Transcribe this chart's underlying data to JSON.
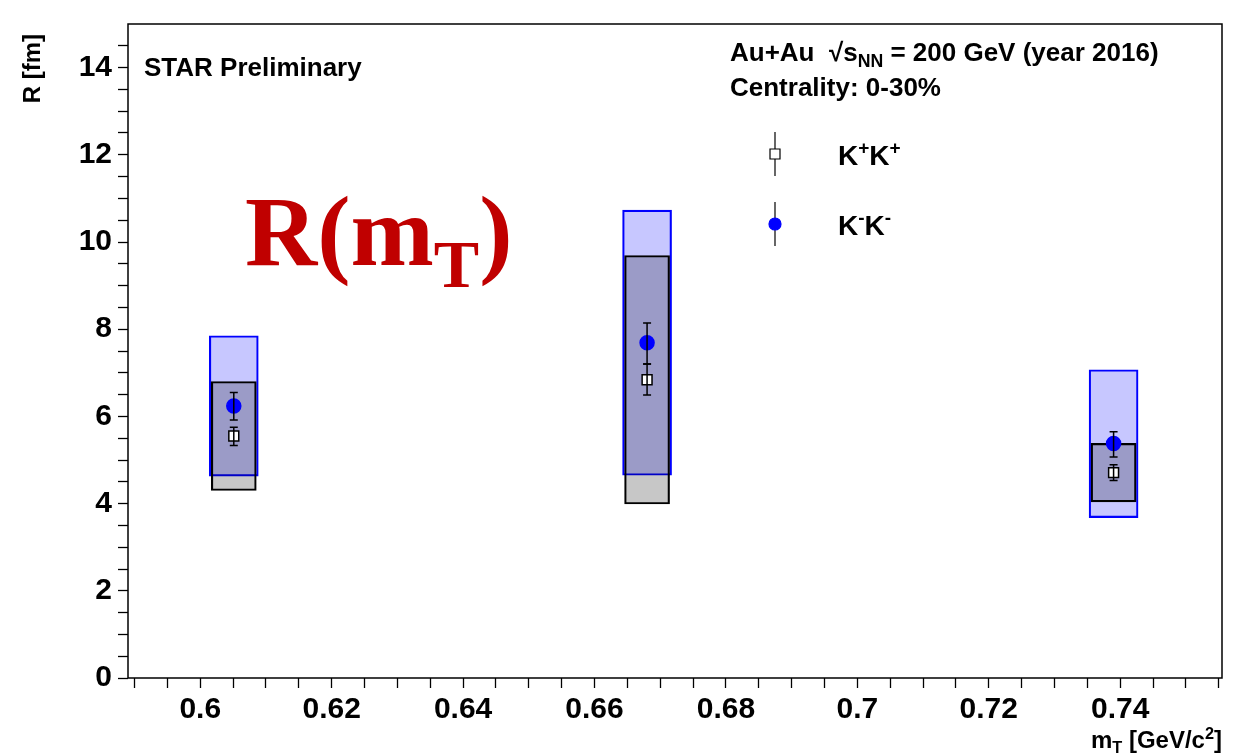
{
  "chart_data": {
    "type": "scatter",
    "xlabel": "m$_{T}$ [GeV/c$^{2}$]",
    "ylabel": "R [fm]",
    "xlim": [
      0.589,
      0.7555
    ],
    "ylim": [
      0,
      15
    ],
    "xticks": [
      {
        "value": 0.59,
        "label": null
      },
      {
        "value": 0.595,
        "label": null
      },
      0.6,
      {
        "value": 0.605,
        "label": null
      },
      {
        "value": 0.61,
        "label": null
      },
      {
        "value": 0.615,
        "label": null
      },
      0.62,
      {
        "value": 0.625,
        "label": null
      },
      {
        "value": 0.63,
        "label": null
      },
      {
        "value": 0.635,
        "label": null
      },
      0.64,
      {
        "value": 0.645,
        "label": null
      },
      {
        "value": 0.65,
        "label": null
      },
      {
        "value": 0.655,
        "label": null
      },
      0.66,
      {
        "value": 0.665,
        "label": null
      },
      {
        "value": 0.67,
        "label": null
      },
      {
        "value": 0.675,
        "label": null
      },
      0.68,
      {
        "value": 0.685,
        "label": null
      },
      {
        "value": 0.69,
        "label": null
      },
      {
        "value": 0.695,
        "label": null
      },
      0.7,
      {
        "value": 0.705,
        "label": null
      },
      {
        "value": 0.71,
        "label": null
      },
      {
        "value": 0.715,
        "label": null
      },
      0.72,
      {
        "value": 0.725,
        "label": null
      },
      {
        "value": 0.73,
        "label": null
      },
      {
        "value": 0.735,
        "label": null
      },
      0.74,
      {
        "value": 0.745,
        "label": null
      },
      {
        "value": 0.75,
        "label": null
      },
      {
        "value": 0.755,
        "label": null
      }
    ],
    "yticks": [
      0,
      {
        "value": 0.5,
        "label": null
      },
      {
        "value": 1,
        "label": null
      },
      {
        "value": 1.5,
        "label": null
      },
      2,
      {
        "value": 2.5,
        "label": null
      },
      {
        "value": 3,
        "label": null
      },
      {
        "value": 3.5,
        "label": null
      },
      4,
      {
        "value": 4.5,
        "label": null
      },
      {
        "value": 5,
        "label": null
      },
      {
        "value": 5.5,
        "label": null
      },
      6,
      {
        "value": 6.5,
        "label": null
      },
      {
        "value": 7,
        "label": null
      },
      {
        "value": 7.5,
        "label": null
      },
      8,
      {
        "value": 8.5,
        "label": null
      },
      {
        "value": 9,
        "label": null
      },
      {
        "value": 9.5,
        "label": null
      },
      10,
      {
        "value": 10.5,
        "label": null
      },
      {
        "value": 11,
        "label": null
      },
      {
        "value": 11.5,
        "label": null
      },
      12,
      {
        "value": 12.5,
        "label": null
      },
      {
        "value": 13,
        "label": null
      },
      {
        "value": 13.5,
        "label": null
      },
      14,
      {
        "value": 14.5,
        "label": null
      }
    ],
    "grid": false,
    "legend": "top right",
    "annotations": [
      "STAR Preliminary",
      "Au+Au  √s$_{NN}$ = 200 GeV (year 2016)",
      "Centrality: 0-30%",
      "R(m$_{T}$)"
    ],
    "series": [
      {
        "type": "bar",
        "color": "#0000ff",
        "x": [
          0.6051,
          0.668,
          0.739
        ],
        "base": [
          4.63,
          4.65,
          3.68
        ],
        "values": [
          3.22,
          6.08,
          3.39
        ]
      },
      {
        "type": "bar",
        "color": "#000000",
        "x": [
          0.6051,
          0.668,
          0.739
        ],
        "base": [
          4.3,
          3.99,
          4.04
        ],
        "values": [
          2.5,
          5.7,
          1.34
        ]
      },
      {
        "name": "K$^{+}$K$^{+}$",
        "color": "#000000",
        "marker": "square",
        "x": [
          0.6051,
          0.668,
          0.739
        ],
        "values": [
          5.55,
          6.84,
          4.71
        ],
        "errors": [
          [
            5.33,
            5.75
          ],
          [
            6.49,
            7.2
          ],
          [
            4.53,
            4.89
          ]
        ]
      },
      {
        "name": "K$^{-}$K$^{-}$",
        "color": "#0000ff",
        "marker": "circle",
        "x": [
          0.6051,
          0.668,
          0.739
        ],
        "values": [
          6.24,
          7.69,
          5.38
        ],
        "errors": [
          [
            5.92,
            6.55
          ],
          [
            7.2,
            8.14
          ],
          [
            5.07,
            5.65
          ]
        ]
      }
    ]
  }
}
